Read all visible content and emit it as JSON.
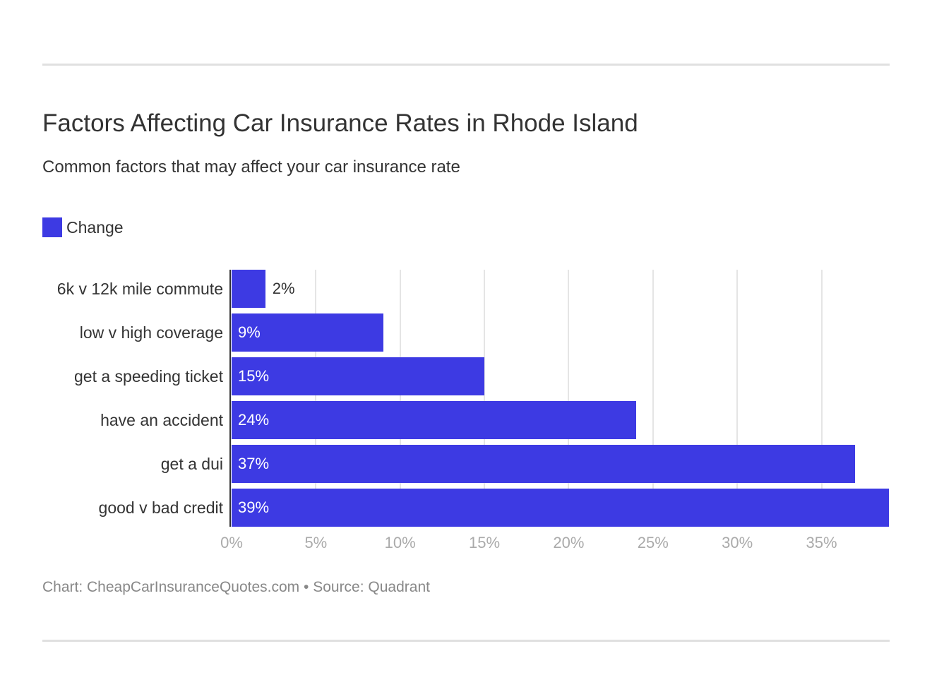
{
  "chart_data": {
    "type": "bar",
    "orientation": "horizontal",
    "title": "Factors Affecting Car Insurance Rates in Rhode Island",
    "subtitle": "Common factors that may affect your car insurance rate",
    "categories": [
      "6k v 12k mile commute",
      "low v high coverage",
      "get a speeding ticket",
      "have an accident",
      "get a dui",
      "good v bad credit"
    ],
    "series": [
      {
        "name": "Change",
        "values": [
          2,
          9,
          15,
          24,
          37,
          39
        ],
        "color": "#3d3ae3"
      }
    ],
    "value_labels": [
      "2%",
      "9%",
      "15%",
      "24%",
      "37%",
      "39%"
    ],
    "xlim": [
      0,
      39
    ],
    "xticks": [
      0,
      5,
      10,
      15,
      20,
      25,
      30,
      35
    ],
    "xtick_labels": [
      "0%",
      "5%",
      "10%",
      "15%",
      "20%",
      "25%",
      "30%",
      "35%"
    ],
    "grid": true,
    "legend": "top-left",
    "footer": "Chart: CheapCarInsuranceQuotes.com • Source: Quadrant"
  }
}
